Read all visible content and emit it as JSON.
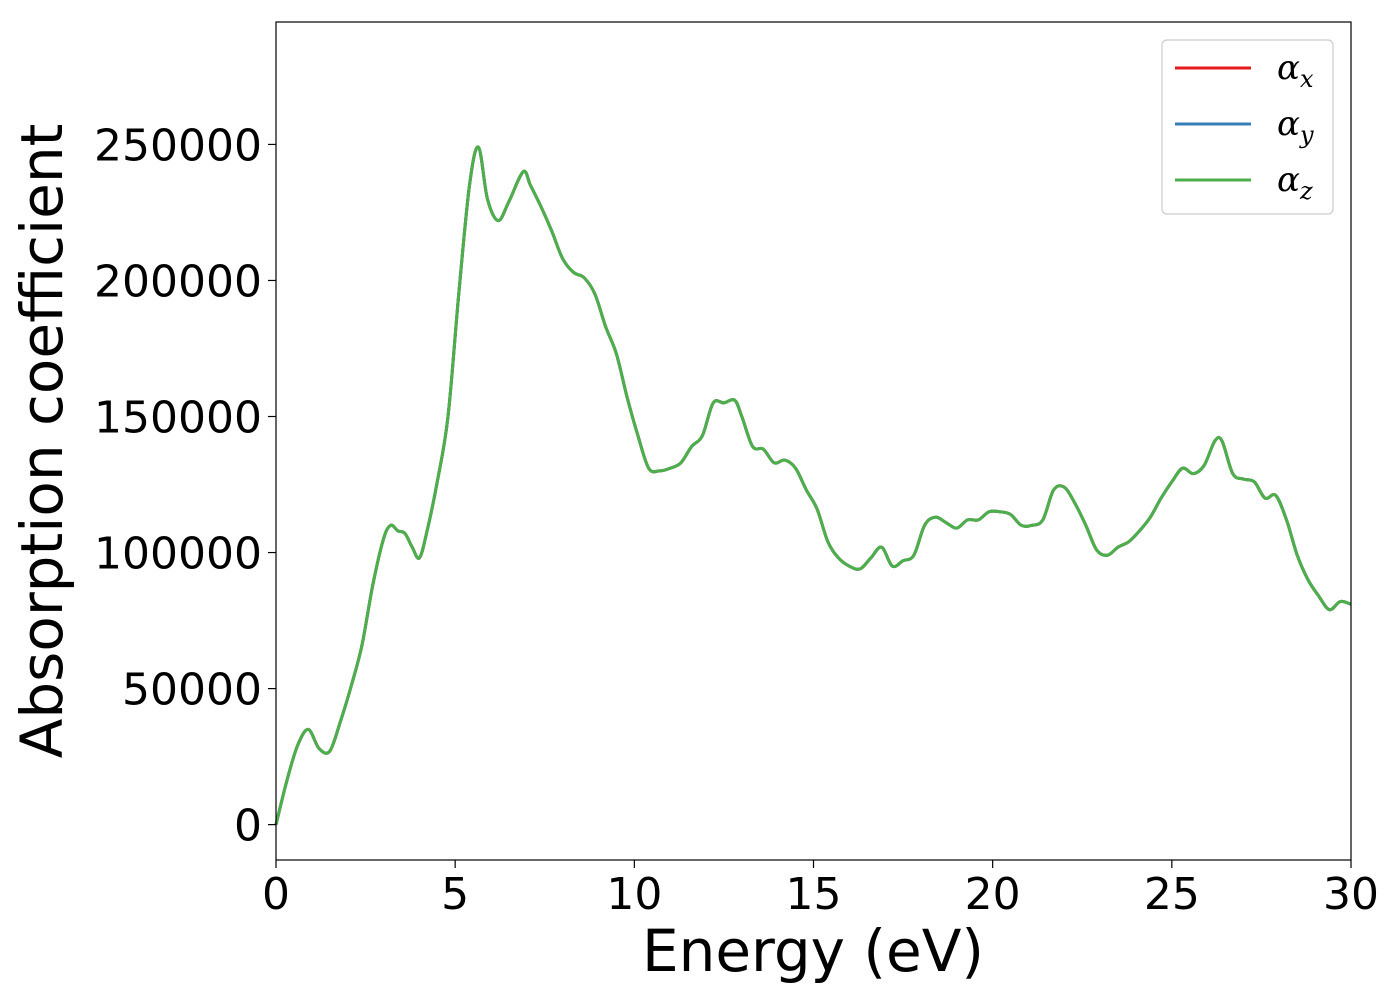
{
  "chart_data": {
    "type": "line",
    "title": "",
    "xlabel": "Energy (eV)",
    "ylabel": "Absorption coefficient",
    "xlim": [
      0,
      30
    ],
    "ylim": [
      -13000,
      295000
    ],
    "x_ticks": [
      0,
      5,
      10,
      15,
      20,
      25,
      30
    ],
    "y_ticks": [
      0,
      50000,
      100000,
      150000,
      200000,
      250000
    ],
    "grid": false,
    "legend_position": "top-right",
    "legend": [
      {
        "label": "α",
        "sub": "x",
        "color": "#e41a1c"
      },
      {
        "label": "α",
        "sub": "y",
        "color": "#377eb8"
      },
      {
        "label": "α",
        "sub": "z",
        "color": "#4daf4a"
      }
    ],
    "x": [
      0,
      0.3,
      0.6,
      0.9,
      1.2,
      1.5,
      1.8,
      2.1,
      2.4,
      2.7,
      3.0,
      3.2,
      3.4,
      3.6,
      3.8,
      4.0,
      4.2,
      4.5,
      4.8,
      5.1,
      5.4,
      5.65,
      5.9,
      6.2,
      6.5,
      6.9,
      7.1,
      7.4,
      7.7,
      8.0,
      8.3,
      8.6,
      8.9,
      9.2,
      9.5,
      9.8,
      10.1,
      10.4,
      10.7,
      11.0,
      11.3,
      11.6,
      11.9,
      12.2,
      12.5,
      12.8,
      13.0,
      13.3,
      13.6,
      13.9,
      14.2,
      14.5,
      14.8,
      15.1,
      15.4,
      15.7,
      16.0,
      16.3,
      16.6,
      16.9,
      17.2,
      17.5,
      17.8,
      18.1,
      18.4,
      18.7,
      19.0,
      19.3,
      19.6,
      19.9,
      20.2,
      20.5,
      20.8,
      21.1,
      21.4,
      21.7,
      22.0,
      22.3,
      22.6,
      22.9,
      23.2,
      23.5,
      23.8,
      24.1,
      24.4,
      24.7,
      25.0,
      25.3,
      25.6,
      25.9,
      26.2,
      26.4,
      26.7,
      27.0,
      27.3,
      27.6,
      27.9,
      28.2,
      28.5,
      28.8,
      29.1,
      29.4,
      29.7,
      30.0
    ],
    "series": [
      {
        "name": "α_x",
        "color": "#e41a1c",
        "values": [
          0,
          16000,
          29000,
          35000,
          28000,
          27000,
          38000,
          51000,
          66000,
          88000,
          105000,
          110000,
          108000,
          107000,
          102000,
          98000,
          107000,
          126000,
          150000,
          195000,
          235000,
          249000,
          230000,
          222000,
          229000,
          240000,
          235000,
          227000,
          218000,
          208000,
          203000,
          201000,
          195000,
          183000,
          173000,
          157000,
          143000,
          131000,
          130000,
          131000,
          133000,
          139000,
          143000,
          155000,
          155000,
          156000,
          150000,
          139000,
          138000,
          133000,
          134000,
          131000,
          123000,
          116000,
          104000,
          98000,
          95000,
          94000,
          98000,
          102000,
          95000,
          97000,
          99000,
          110000,
          113000,
          111000,
          109000,
          112000,
          112000,
          115000,
          115000,
          114000,
          110000,
          110000,
          112000,
          123000,
          124000,
          118000,
          110000,
          101000,
          99000,
          102000,
          104000,
          108000,
          113000,
          120000,
          126000,
          131000,
          129000,
          132000,
          141000,
          141000,
          129000,
          127000,
          126000,
          120000,
          121000,
          112000,
          99000,
          90000,
          84000,
          79000,
          82000,
          81000
        ]
      },
      {
        "name": "α_y",
        "color": "#377eb8",
        "values": [
          0,
          16000,
          29000,
          35000,
          28000,
          27000,
          38000,
          51000,
          66000,
          88000,
          105000,
          110000,
          108000,
          107000,
          102000,
          98000,
          107000,
          126000,
          150000,
          195000,
          235000,
          249000,
          230000,
          222000,
          229000,
          240000,
          235000,
          227000,
          218000,
          208000,
          203000,
          201000,
          195000,
          183000,
          173000,
          157000,
          143000,
          131000,
          130000,
          131000,
          133000,
          139000,
          143000,
          155000,
          155000,
          156000,
          150000,
          139000,
          138000,
          133000,
          134000,
          131000,
          123000,
          116000,
          104000,
          98000,
          95000,
          94000,
          98000,
          102000,
          95000,
          97000,
          99000,
          110000,
          113000,
          111000,
          109000,
          112000,
          112000,
          115000,
          115000,
          114000,
          110000,
          110000,
          112000,
          123000,
          124000,
          118000,
          110000,
          101000,
          99000,
          102000,
          104000,
          108000,
          113000,
          120000,
          126000,
          131000,
          129000,
          132000,
          141000,
          141000,
          129000,
          127000,
          126000,
          120000,
          121000,
          112000,
          99000,
          90000,
          84000,
          79000,
          82000,
          81000
        ]
      },
      {
        "name": "α_z",
        "color": "#4daf4a",
        "values": [
          0,
          16000,
          29000,
          35000,
          28000,
          27000,
          38000,
          51000,
          66000,
          88000,
          105000,
          110000,
          108000,
          107000,
          102000,
          98000,
          107000,
          126000,
          150000,
          195000,
          235000,
          249000,
          230000,
          222000,
          229000,
          240000,
          235000,
          227000,
          218000,
          208000,
          203000,
          201000,
          195000,
          183000,
          173000,
          157000,
          143000,
          131000,
          130000,
          131000,
          133000,
          139000,
          143000,
          155000,
          155000,
          156000,
          150000,
          139000,
          138000,
          133000,
          134000,
          131000,
          123000,
          116000,
          104000,
          98000,
          95000,
          94000,
          98000,
          102000,
          95000,
          97000,
          99000,
          110000,
          113000,
          111000,
          109000,
          112000,
          112000,
          115000,
          115000,
          114000,
          110000,
          110000,
          112000,
          123000,
          124000,
          118000,
          110000,
          101000,
          99000,
          102000,
          104000,
          108000,
          113000,
          120000,
          126000,
          131000,
          129000,
          132000,
          141000,
          141000,
          129000,
          127000,
          126000,
          120000,
          121000,
          112000,
          99000,
          90000,
          84000,
          79000,
          82000,
          81000
        ]
      }
    ]
  }
}
